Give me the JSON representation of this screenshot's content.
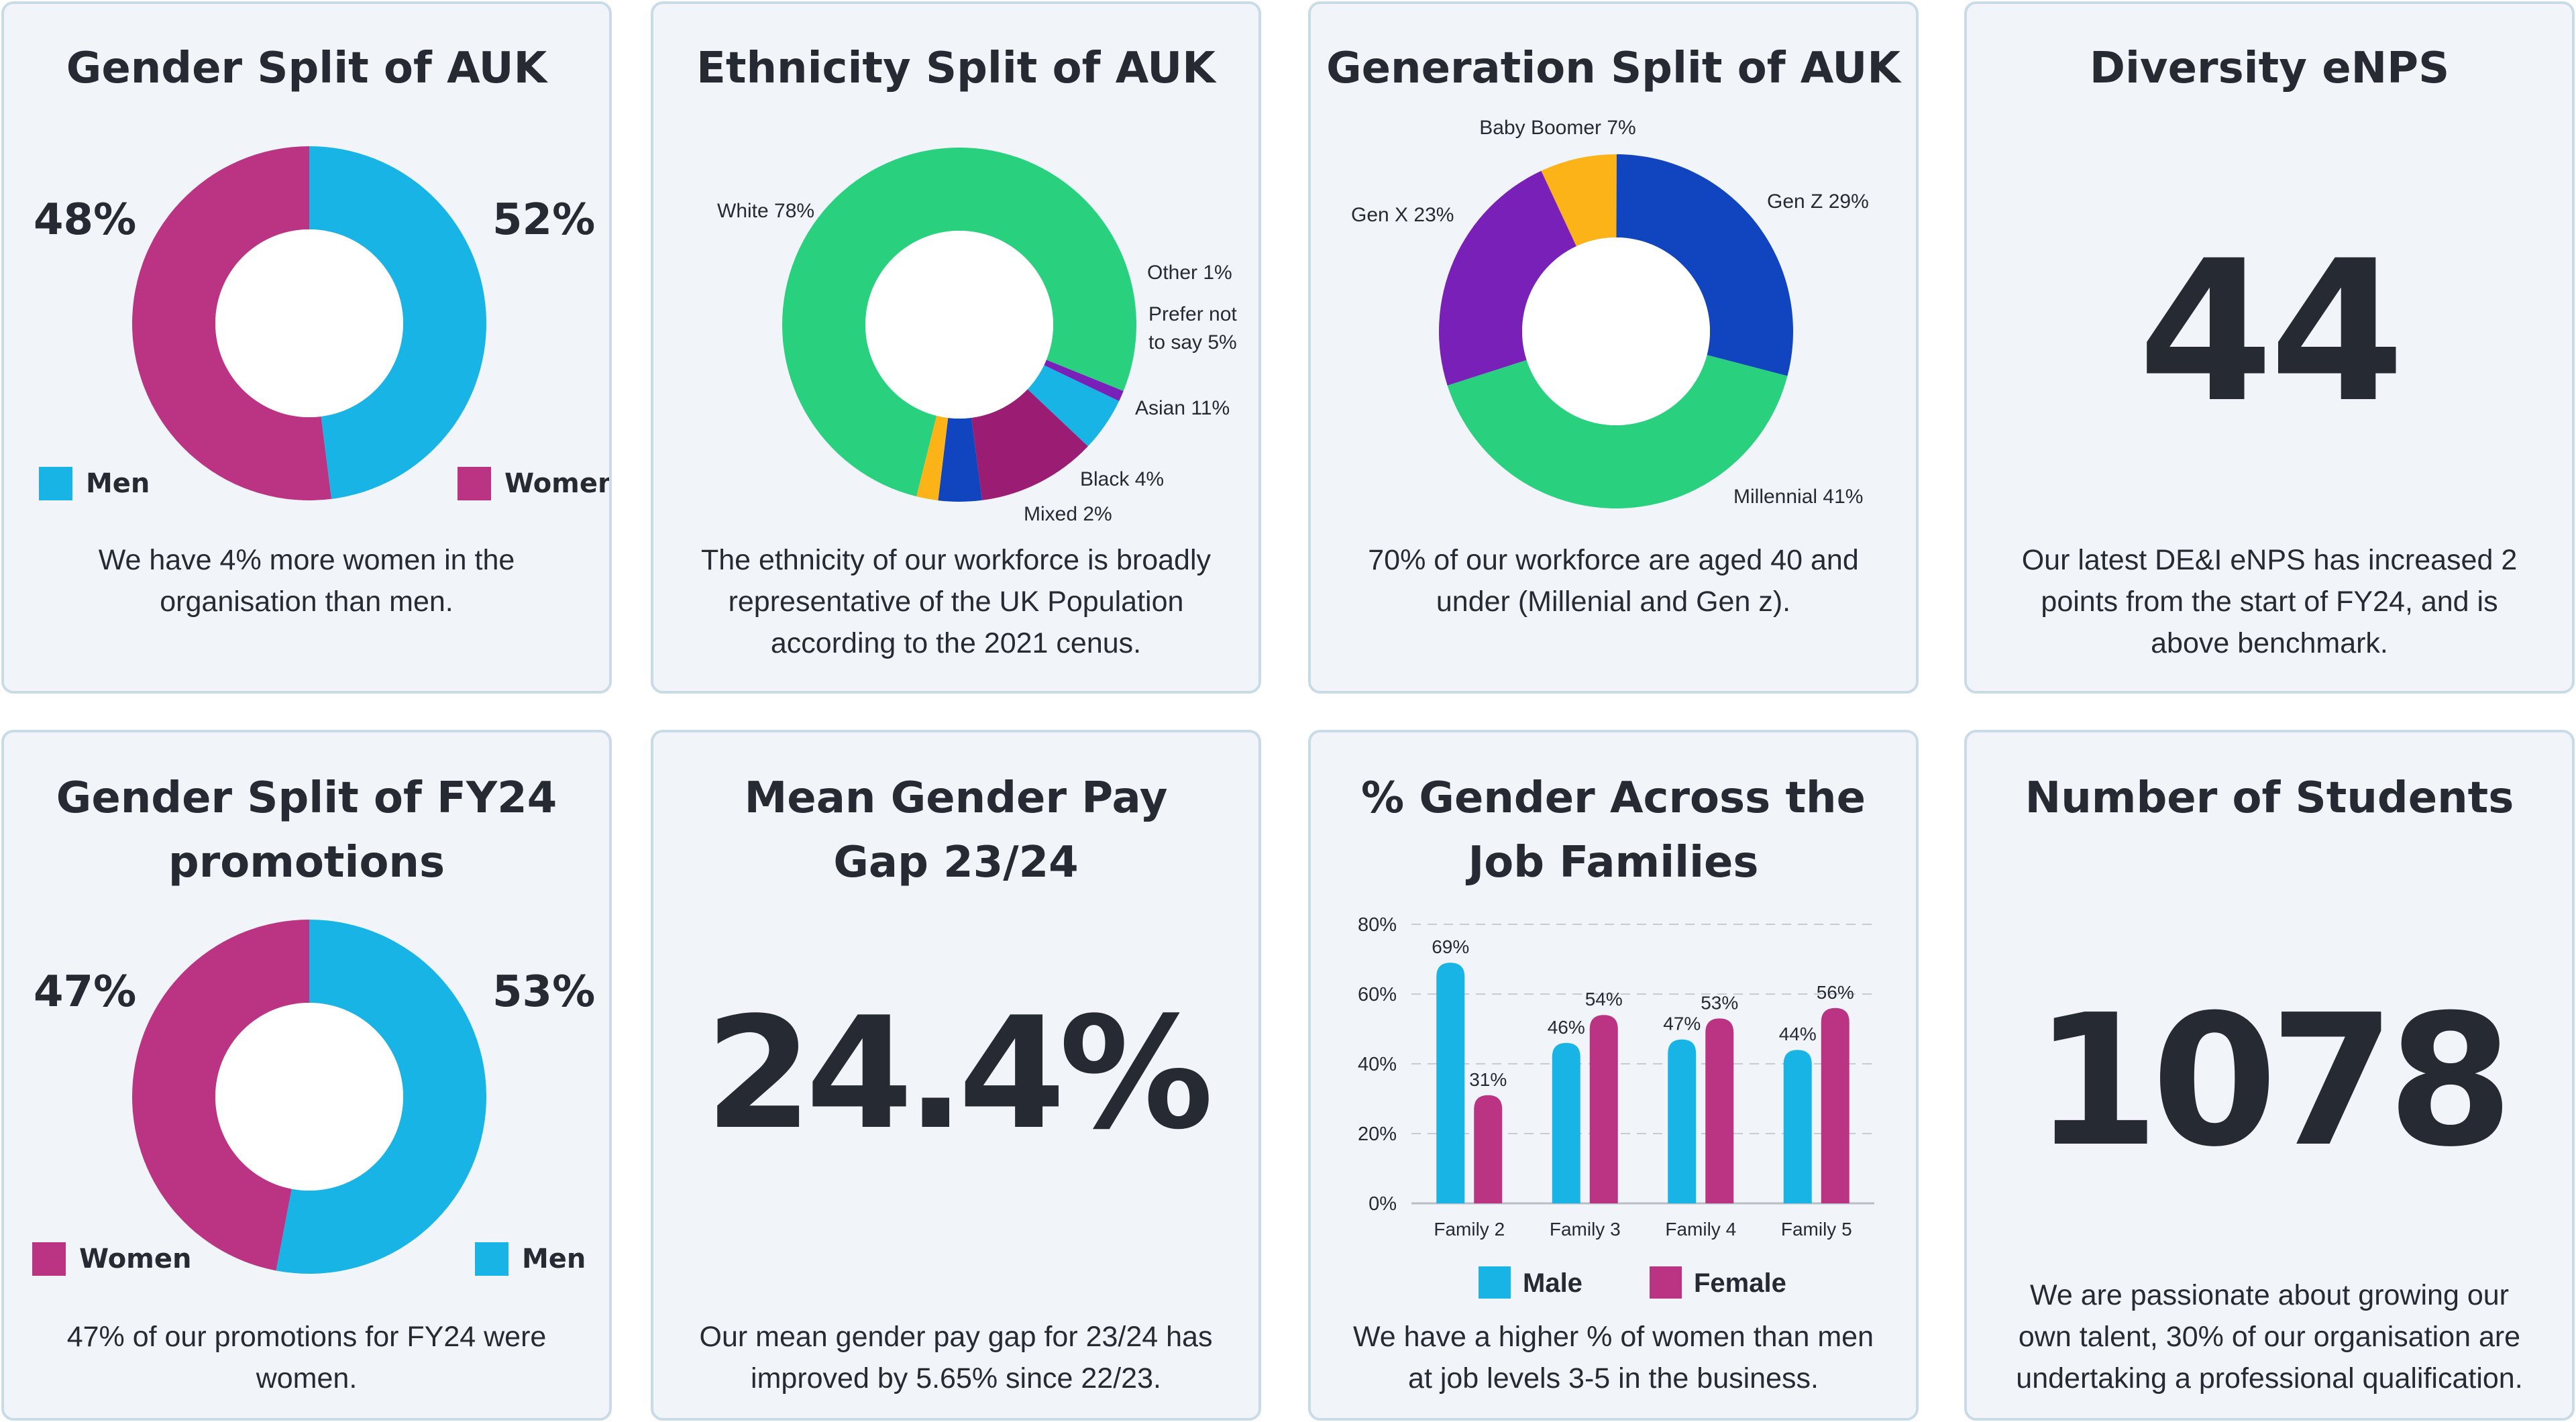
{
  "colors": {
    "blue": "#19b4e6",
    "magenta": "#bb3483",
    "green": "#29d17f",
    "purple": "#7820b7",
    "orange": "#fbb318",
    "navy": "#1144bf",
    "plum": "#9b1c73",
    "dark_text": "#262a33",
    "card_bg": "#f1f5f9",
    "card_border": "#c9dbe7"
  },
  "cards": {
    "gender_auk": {
      "title": "Gender Split of AUK",
      "left_pct": "48%",
      "right_pct": "52%",
      "legend_left": "Men",
      "legend_right": "Women",
      "text": "We have 4% more women in the organisation than men."
    },
    "ethnicity_auk": {
      "title": "Ethnicity Split of AUK",
      "text": "The ethnicity of our workforce is broadly representative of the UK Population according to the 2021 cenus."
    },
    "generation_auk": {
      "title": "Generation Split of AUK",
      "text": "70% of our workforce are aged 40 and under (Millenial and Gen z)."
    },
    "diversity_enps": {
      "title": "Diversity eNPS",
      "value": "44",
      "text": "Our latest DE&I eNPS has increased 2 points from the start of FY24, and is above benchmark."
    },
    "gender_promotions": {
      "title_line1": "Gender Split of FY24",
      "title_line2": "promotions",
      "left_pct": "47%",
      "right_pct": "53%",
      "legend_left": "Women",
      "legend_right": "Men",
      "text": "47% of our promotions for FY24 were women."
    },
    "pay_gap": {
      "title_line1": "Mean Gender Pay",
      "title_line2": "Gap 23/24",
      "value": "24.4%",
      "text": "Our mean gender pay gap for 23/24 has improved by 5.65% since 22/23."
    },
    "job_families": {
      "title_line1": "% Gender Across the",
      "title_line2": "Job Families",
      "text": "We have a higher % of women than men at job levels 3-5 in the business."
    },
    "students": {
      "title": "Number of Students",
      "value": "1078",
      "text": "We are passionate about growing our own talent, 30% of our organisation are undertaking a professional qualification."
    }
  },
  "chart_data": [
    {
      "type": "pie",
      "title": "Gender Split of AUK",
      "labels": [
        "Men",
        "Women"
      ],
      "values": [
        48,
        52
      ],
      "colors": [
        "#19b4e6",
        "#bb3483"
      ]
    },
    {
      "type": "pie",
      "title": "Ethnicity Split of AUK",
      "labels": [
        "White 78%",
        "Other 1%",
        "Prefer not to say 5%",
        "Asian 11%",
        "Black 4%",
        "Mixed 2%"
      ],
      "values": [
        78,
        1,
        5,
        11,
        4,
        2
      ],
      "colors": [
        "#29d17f",
        "#7820b7",
        "#19b4e6",
        "#9b1c73",
        "#1144bf",
        "#fbb318"
      ]
    },
    {
      "type": "pie",
      "title": "Generation Split of AUK",
      "labels": [
        "Baby Boomer 7%",
        "Gen Z 29%",
        "Millennial 41%",
        "Gen X 23%"
      ],
      "values": [
        7,
        29,
        41,
        23
      ],
      "colors": [
        "#fbb318",
        "#1144bf",
        "#29d17f",
        "#7820b7"
      ]
    },
    {
      "type": "pie",
      "title": "Gender Split of FY24 promotions",
      "labels": [
        "Men",
        "Women"
      ],
      "values": [
        53,
        47
      ],
      "colors": [
        "#19b4e6",
        "#bb3483"
      ]
    },
    {
      "type": "bar",
      "title": "% Gender Across the Job Families",
      "categories": [
        "Family 2",
        "Family 3",
        "Family 4",
        "Family 5"
      ],
      "series": [
        {
          "name": "Male",
          "values": [
            69,
            46,
            47,
            44
          ],
          "labels": [
            "69%",
            "46%",
            "47%",
            "44%"
          ],
          "color": "#19b4e6"
        },
        {
          "name": "Female",
          "values": [
            31,
            54,
            53,
            56
          ],
          "labels": [
            "31%",
            "54%",
            "53%",
            "56%"
          ],
          "color": "#bb3483"
        }
      ],
      "ylim": [
        0,
        80
      ],
      "yticks": [
        "0%",
        "20%",
        "40%",
        "60%",
        "80%"
      ],
      "grid": true,
      "legend": "bottom"
    }
  ]
}
